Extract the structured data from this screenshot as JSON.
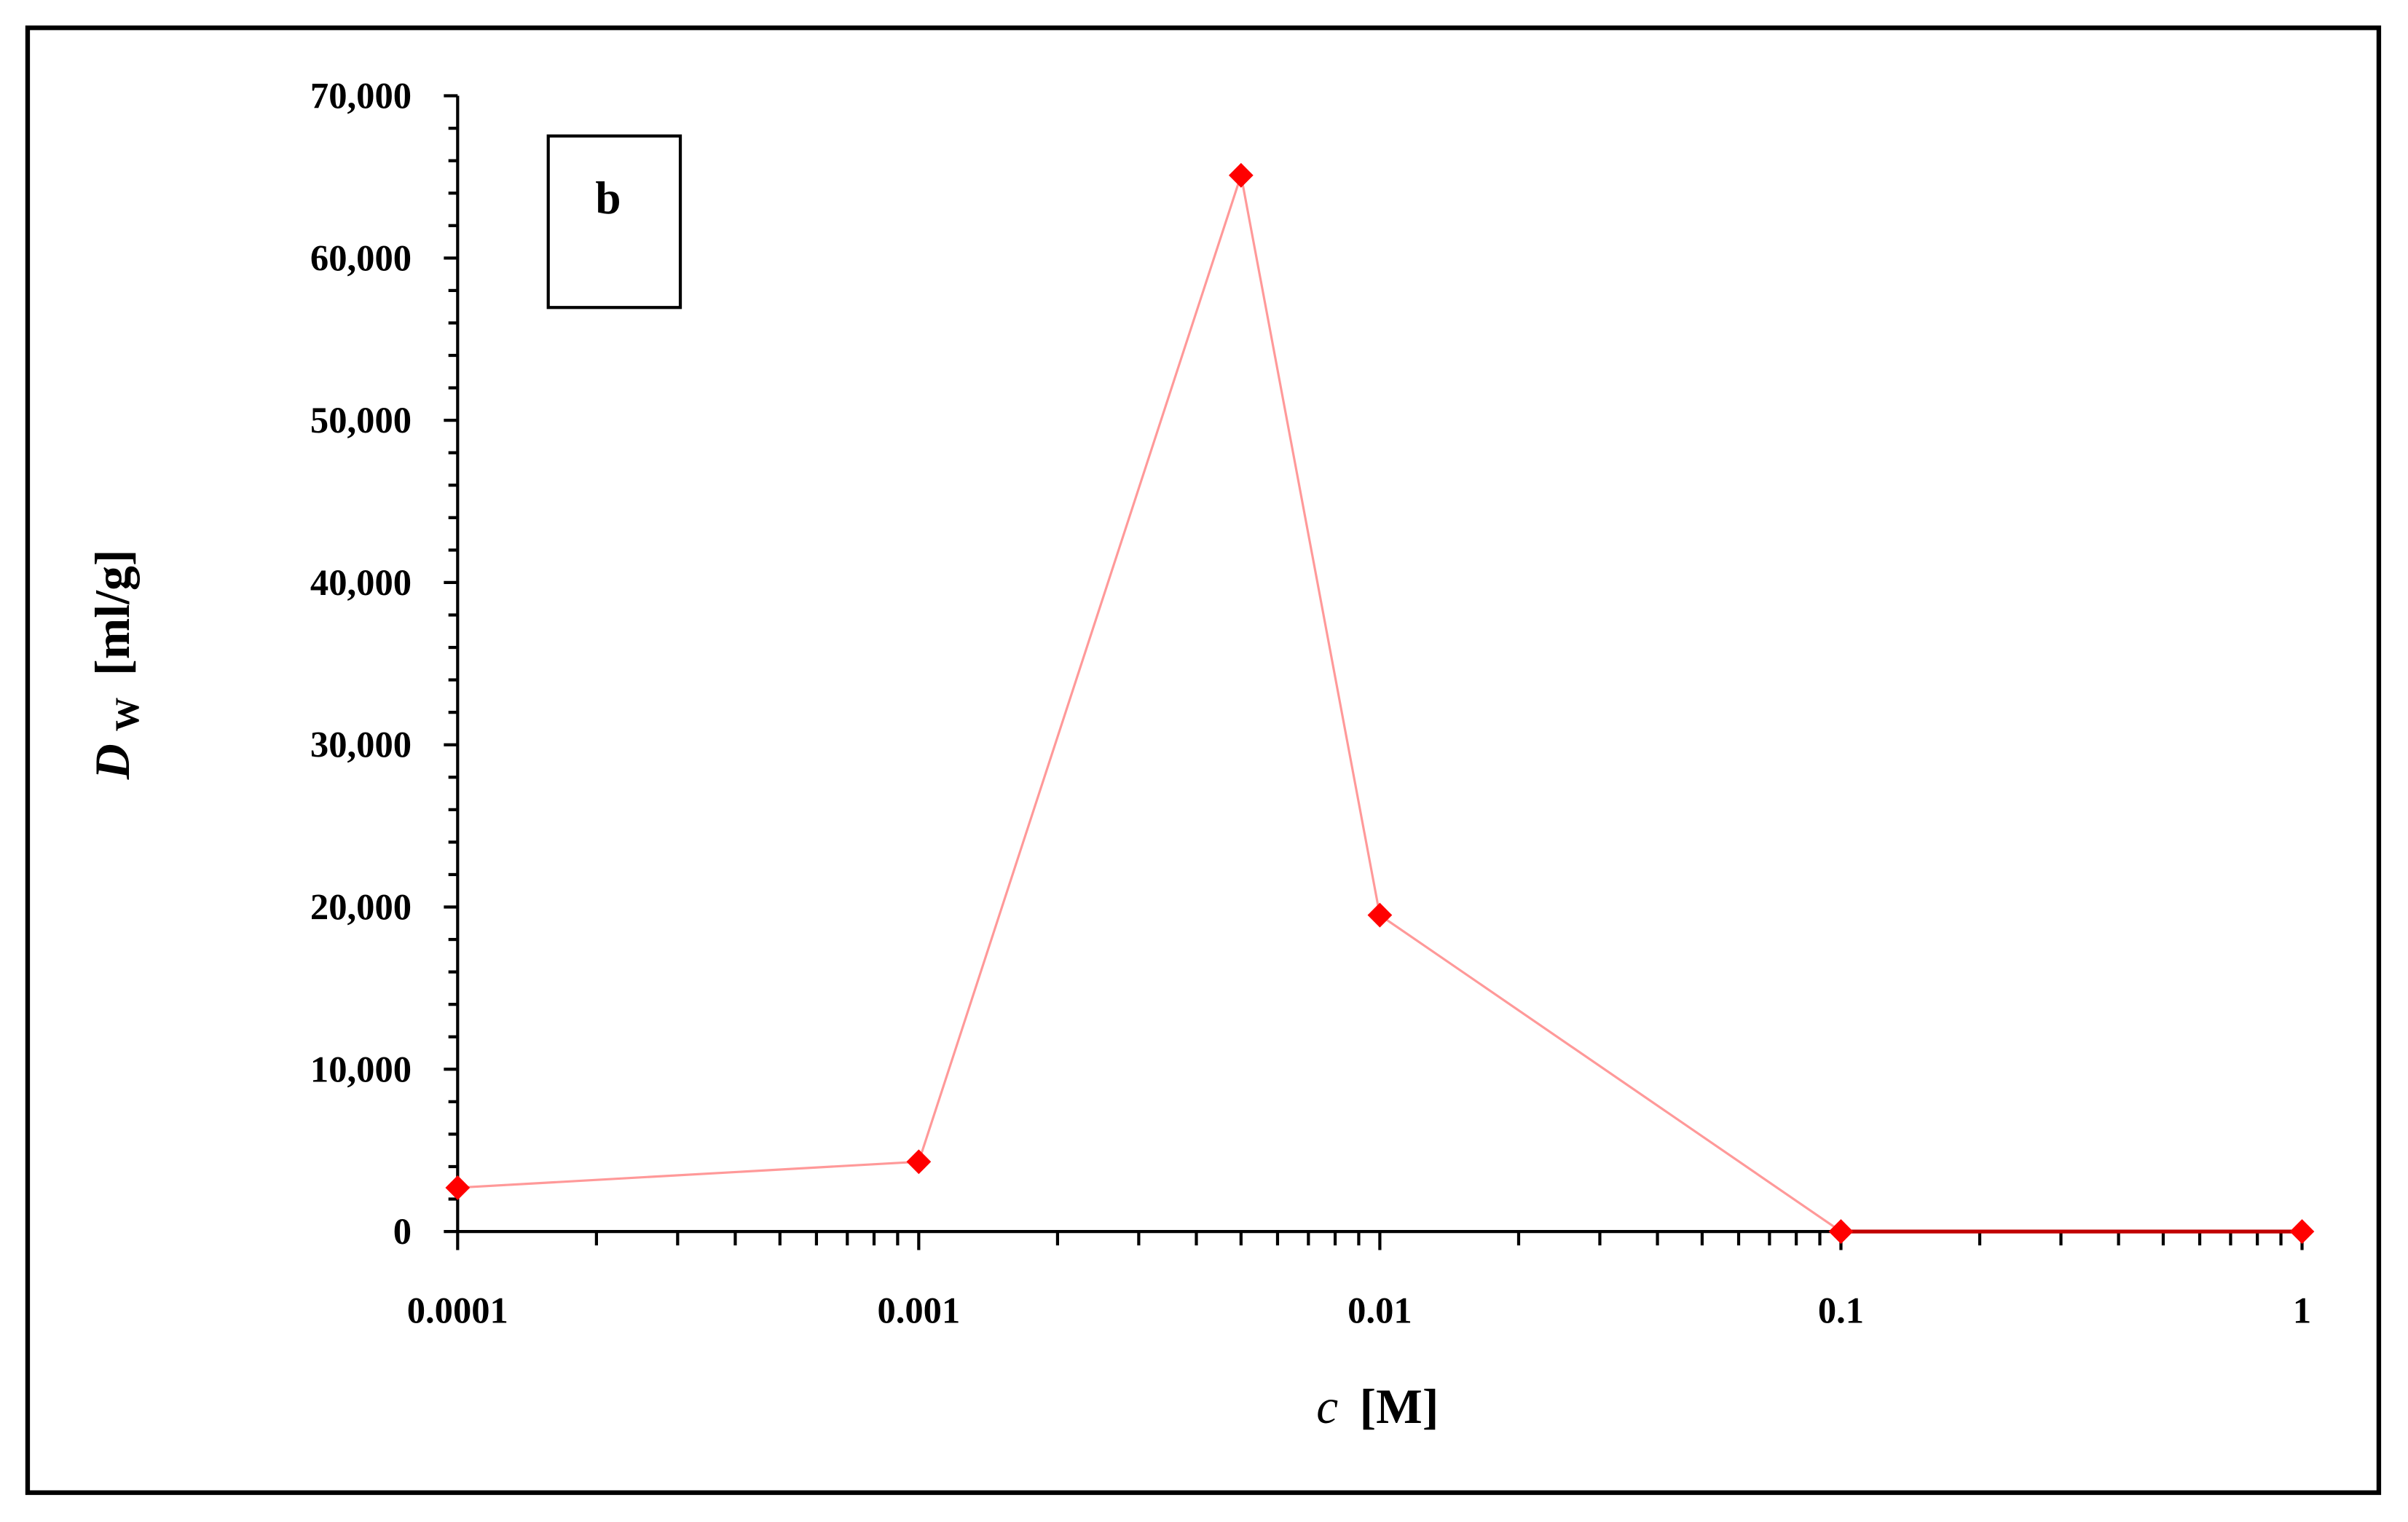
{
  "chart_data": {
    "type": "line",
    "title": "",
    "panel_label": "b",
    "xlabel": "c [M]",
    "xlabel_var": "c",
    "xlabel_unit": "[M]",
    "ylabel": "D_W [ml/g]",
    "ylabel_var": "D",
    "ylabel_sub": "W",
    "ylabel_unit": "[ml/g]",
    "x_scale": "log",
    "xlim": [
      0.0001,
      1
    ],
    "ylim": [
      0,
      70000
    ],
    "x_tick_labels": [
      "0.0001",
      "0.001",
      "0.01",
      "0.1",
      "1"
    ],
    "y_tick_labels": [
      "0",
      "10,000",
      "20,000",
      "30,000",
      "40,000",
      "50,000",
      "60,000",
      "70,000"
    ],
    "grid": false,
    "legend": null,
    "series": [
      {
        "name": "D_W",
        "color": "#ff0000",
        "line_color": "#ff9999",
        "marker": "diamond",
        "x": [
          0.0001,
          0.001,
          0.005,
          0.01,
          0.1,
          1
        ],
        "values": [
          2700,
          4300,
          65100,
          19500,
          0,
          0
        ]
      }
    ]
  },
  "colors": {
    "marker": "#ff0000",
    "line": "#ff9999",
    "axis": "#000000",
    "background": "#ffffff"
  }
}
